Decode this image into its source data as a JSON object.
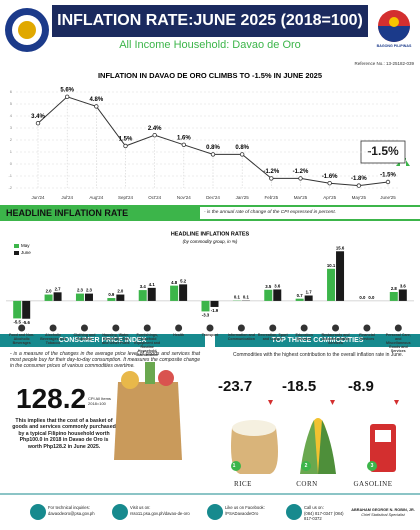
{
  "header": {
    "title": "INFLATION RATE:JUNE 2025 (2018=100)",
    "subtitle": "All Income Household: Davao de Oro",
    "logo_text": "BAGONG PILIPINAS",
    "reference": "Reference No.: 13-25182-039"
  },
  "chart_data": [
    {
      "type": "line",
      "title": "INFLATION IN DAVAO DE ORO CLIMBS TO -1.5% IN JUNE 2025",
      "categories": [
        "Jun'24",
        "Jul'24",
        "Aug'24",
        "Sept'24",
        "Oct'24",
        "Nov'24",
        "Dec'24",
        "Jan'25",
        "Feb'25",
        "Mar'25",
        "Apr'25",
        "May'25",
        "June'25"
      ],
      "values": [
        3.4,
        5.6,
        4.8,
        1.5,
        2.4,
        1.6,
        0.8,
        0.8,
        -1.2,
        -1.2,
        -1.6,
        -1.8,
        -1.5
      ],
      "value_labels": [
        "3.4%",
        "5.6%",
        "4.8%",
        "1.5%",
        "2.4%",
        "1.6%",
        "0.8%",
        "0.8%",
        "-1.2%",
        "-1.2%",
        "-1.6%",
        "-1.8%",
        "-1.5%"
      ],
      "color": "#333333",
      "ylim": [
        -2,
        6
      ],
      "yticks": [
        -2,
        -1,
        0,
        1,
        2,
        3,
        4,
        5,
        6
      ],
      "grid": true,
      "callout": "-1.5%"
    },
    {
      "type": "bar",
      "title": "HEADLINE INFLATION RATES",
      "subtitle": "(by commodity group, in %)",
      "categories": [
        "Food and Non-Alcoholic Beverages",
        "Alcoholic Beverages and Tobacco",
        "Clothing and Footwear",
        "Housing, Water, Electricity, Gas and Other Fuels",
        "Furnishings, Household Equipment and Routine Household Maintenance",
        "Health",
        "Transport",
        "Information and Communication",
        "Recreation, Sport and Culture",
        "Education Services",
        "Restaurants and Accommodation Services",
        "Financial Services",
        "Personal Care, and Miscellaneous Goods and Services"
      ],
      "series": [
        {
          "name": "May",
          "color": "#3cb54a",
          "values": [
            -5.5,
            2.0,
            2.3,
            0.9,
            3.4,
            4.8,
            -3.3,
            0.1,
            3.5,
            0.7,
            10.1,
            0.0,
            2.8
          ],
          "value_labels": [
            "-5.5",
            "2.0",
            "2.3",
            "0.9",
            "3.4",
            "4.8",
            "-3.3",
            "0.1",
            "3.5",
            "0.7",
            "10.1",
            "0.0",
            "2.8"
          ]
        },
        {
          "name": "June",
          "color": "#1a1a1a",
          "values": [
            -5.6,
            2.7,
            2.3,
            2.0,
            4.1,
            5.2,
            -1.9,
            0.1,
            3.6,
            1.7,
            15.6,
            0.0,
            3.6
          ],
          "value_labels": [
            "-5.6",
            "2.7",
            "2.3",
            "2.0",
            "4.1",
            "5.2",
            "-1.9",
            "0.1",
            "3.6",
            "1.7",
            "15.6",
            "0.0",
            "3.6"
          ]
        }
      ],
      "ylim": [
        -6,
        16
      ]
    }
  ],
  "headline": {
    "title": "HEADLINE INFLATION RATE",
    "definition": "- is the annual rate of change of the CPI expressed in percent."
  },
  "cpi": {
    "title": "CONSUMER PRICE INDEX",
    "definition": "- is a measure of the changes in the average price level of goods and services that most people buy for their day-to-day consumption. It measures the composite change in the consumer prices of various commodities overtime.",
    "value": "128.2",
    "value_caption": "CPI All Items 2018=100",
    "implication": "This implies that the cost of a basket of goods and services commonly purchased by a typical Filipino household worth Php100.0 in 2018 in Davao de Oro is worth Php128.2 in June 2025."
  },
  "top_three": {
    "title": "TOP THREE COMMODITIES",
    "description": "Commodities with the highest contribution to the overall inflation rate in June.",
    "items": [
      {
        "rank": "1",
        "value": "-23.7",
        "name": "RICE"
      },
      {
        "rank": "2",
        "value": "-18.5",
        "name": "CORN"
      },
      {
        "rank": "3",
        "value": "-8.9",
        "name": "GASOLINE"
      }
    ]
  },
  "footer": {
    "email_label": "For technical inquiries:",
    "email": "davaodeoro@psa.gov.ph",
    "web_label": "Visit us on:",
    "web": "rsso11.psa.gov.ph/davao-de-oro",
    "fb_label": "Like us on Facebook:",
    "fb": "/PSADavaodeOro",
    "phone_label": "Call us on:",
    "phone": "(084) 817-0347 (084) 817-0372",
    "signatory": "ABRAHAM GEORGE N. ROBIN, JR.",
    "signatory_title": "Chief Statistical Specialist"
  }
}
